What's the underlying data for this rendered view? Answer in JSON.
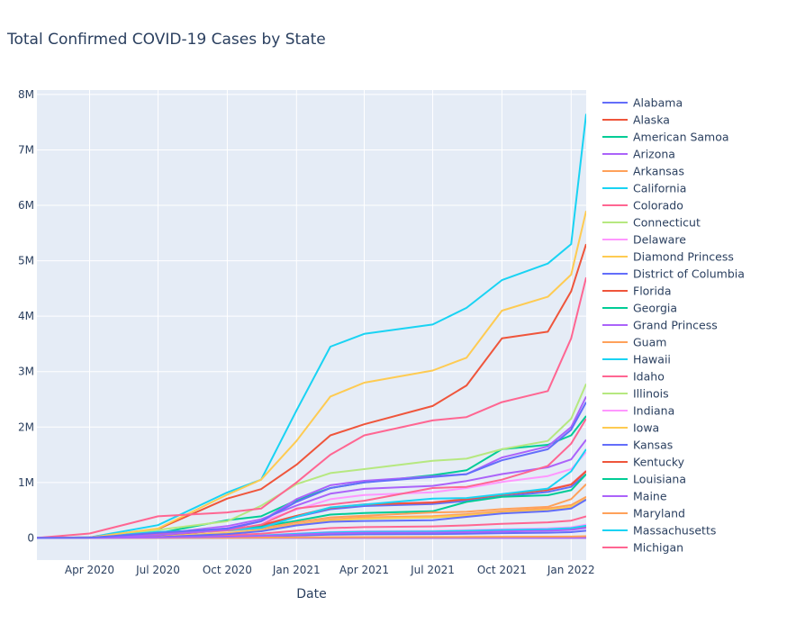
{
  "chart_data": {
    "type": "line",
    "title": "Total Confirmed COVID-19 Cases by State",
    "xlabel": "Date",
    "ylabel": "",
    "xlim": [
      "2020-01-22",
      "2022-01-21"
    ],
    "ylim": [
      -400000,
      8080000
    ],
    "grid": true,
    "legend_placement": "right",
    "xticks": [
      {
        "date": "2020-04-01",
        "label": "Apr 2020"
      },
      {
        "date": "2020-07-01",
        "label": "Jul 2020"
      },
      {
        "date": "2020-10-01",
        "label": "Oct 2020"
      },
      {
        "date": "2021-01-01",
        "label": "Jan 2021"
      },
      {
        "date": "2021-04-01",
        "label": "Apr 2021"
      },
      {
        "date": "2021-07-01",
        "label": "Jul 2021"
      },
      {
        "date": "2021-10-01",
        "label": "Oct 2021"
      },
      {
        "date": "2022-01-01",
        "label": "Jan 2022"
      }
    ],
    "yticks": [
      {
        "value": 0,
        "label": "0"
      },
      {
        "value": 1000000,
        "label": "1M"
      },
      {
        "value": 2000000,
        "label": "2M"
      },
      {
        "value": 3000000,
        "label": "3M"
      },
      {
        "value": 4000000,
        "label": "4M"
      },
      {
        "value": 5000000,
        "label": "5M"
      },
      {
        "value": 6000000,
        "label": "6M"
      },
      {
        "value": 7000000,
        "label": "7M"
      },
      {
        "value": 8000000,
        "label": "8M"
      }
    ],
    "x": [
      "2020-01-22",
      "2020-04-01",
      "2020-07-01",
      "2020-10-01",
      "2020-11-15",
      "2021-01-01",
      "2021-02-15",
      "2021-04-01",
      "2021-07-01",
      "2021-08-15",
      "2021-10-01",
      "2021-12-01",
      "2022-01-01",
      "2022-01-21"
    ],
    "value_unit_millions": true,
    "series": [
      {
        "name": "Alabama",
        "color": "#636efa",
        "values": [
          0,
          0.003,
          0.046,
          0.138,
          0.219,
          0.38,
          0.518,
          0.575,
          0.61,
          0.667,
          0.748,
          0.828,
          0.92,
          1.15
        ]
      },
      {
        "name": "Alaska",
        "color": "#EF553B",
        "values": [
          0,
          0,
          0.008,
          0.025,
          0.04,
          0.069,
          0.095,
          0.105,
          0.111,
          0.122,
          0.137,
          0.151,
          0.168,
          0.21
        ]
      },
      {
        "name": "American Samoa",
        "color": "#00cc96",
        "values": [
          0,
          0,
          0,
          0,
          0,
          0,
          0,
          0,
          0,
          0,
          0,
          0,
          0,
          0
        ]
      },
      {
        "name": "Arizona",
        "color": "#ab63fa",
        "values": [
          0,
          0.005,
          0.071,
          0.212,
          0.336,
          0.584,
          0.797,
          0.885,
          0.938,
          1.027,
          1.151,
          1.274,
          1.416,
          1.77
        ]
      },
      {
        "name": "Arkansas",
        "color": "#FFA15A",
        "values": [
          0,
          0.002,
          0.03,
          0.089,
          0.141,
          0.244,
          0.333,
          0.37,
          0.392,
          0.429,
          0.481,
          0.533,
          0.592,
          0.74
        ]
      },
      {
        "name": "California",
        "color": "#19d3f3",
        "values": [
          0,
          0.01,
          0.23,
          0.82,
          1.05,
          2.3,
          3.45,
          3.68,
          3.85,
          4.15,
          4.65,
          4.95,
          5.3,
          7.65
        ]
      },
      {
        "name": "Colorado",
        "color": "#FF6692",
        "values": [
          0,
          0.004,
          0.048,
          0.145,
          0.23,
          0.399,
          0.545,
          0.605,
          0.641,
          0.702,
          0.787,
          0.871,
          0.968,
          1.21
        ]
      },
      {
        "name": "Connecticut",
        "color": "#B6E880",
        "values": [
          0,
          0.002,
          0.028,
          0.083,
          0.131,
          0.228,
          0.311,
          0.345,
          0.366,
          0.4,
          0.449,
          0.497,
          0.552,
          0.69
        ]
      },
      {
        "name": "Delaware",
        "color": "#FF97FF",
        "values": [
          0,
          0.001,
          0.01,
          0.029,
          0.046,
          0.079,
          0.108,
          0.12,
          0.127,
          0.139,
          0.156,
          0.173,
          0.192,
          0.24
        ]
      },
      {
        "name": "Diamond Princess",
        "color": "#FECB52",
        "values": [
          0,
          0,
          0,
          0,
          0,
          0,
          0,
          0,
          0,
          0,
          0,
          0,
          0,
          0
        ]
      },
      {
        "name": "District of Columbia",
        "color": "#636efa",
        "values": [
          0,
          0,
          0.005,
          0.016,
          0.025,
          0.043,
          0.059,
          0.065,
          0.069,
          0.075,
          0.085,
          0.094,
          0.104,
          0.13
        ]
      },
      {
        "name": "Florida",
        "color": "#EF553B",
        "values": [
          0,
          0.007,
          0.16,
          0.71,
          0.88,
          1.32,
          1.85,
          2.05,
          2.38,
          2.75,
          3.6,
          3.72,
          4.45,
          5.3
        ]
      },
      {
        "name": "Georgia",
        "color": "#00cc96",
        "values": [
          0,
          0.005,
          0.085,
          0.32,
          0.39,
          0.68,
          0.9,
          1.0,
          1.13,
          1.22,
          1.6,
          1.68,
          1.85,
          2.2
        ]
      },
      {
        "name": "Grand Princess",
        "color": "#ab63fa",
        "values": [
          0,
          0,
          0,
          0,
          0,
          0,
          0,
          0,
          0,
          0,
          0,
          0,
          0,
          0
        ]
      },
      {
        "name": "Guam",
        "color": "#FFA15A",
        "values": [
          0,
          0,
          0.001,
          0.004,
          0.006,
          0.01,
          0.014,
          0.015,
          0.016,
          0.017,
          0.02,
          0.022,
          0.024,
          0.03
        ]
      },
      {
        "name": "Hawaii",
        "color": "#19d3f3",
        "values": [
          0,
          0,
          0.009,
          0.026,
          0.042,
          0.073,
          0.099,
          0.11,
          0.117,
          0.128,
          0.143,
          0.158,
          0.176,
          0.22
        ]
      },
      {
        "name": "Idaho",
        "color": "#FF6692",
        "values": [
          0,
          0.001,
          0.016,
          0.047,
          0.074,
          0.129,
          0.176,
          0.195,
          0.207,
          0.226,
          0.254,
          0.281,
          0.312,
          0.39
        ]
      },
      {
        "name": "Illinois",
        "color": "#B6E880",
        "values": [
          0,
          0.006,
          0.145,
          0.3,
          0.58,
          0.97,
          1.17,
          1.24,
          1.39,
          1.43,
          1.6,
          1.75,
          2.15,
          2.78
        ]
      },
      {
        "name": "Indiana",
        "color": "#FF97FF",
        "values": [
          0,
          0.005,
          0.062,
          0.186,
          0.295,
          0.512,
          0.698,
          0.775,
          0.822,
          0.899,
          1.008,
          1.116,
          1.24,
          1.55
        ]
      },
      {
        "name": "Iowa",
        "color": "#FECB52",
        "values": [
          0,
          0.002,
          0.028,
          0.084,
          0.133,
          0.231,
          0.315,
          0.35,
          0.371,
          0.406,
          0.455,
          0.504,
          0.56,
          0.7
        ]
      },
      {
        "name": "Kansas",
        "color": "#636efa",
        "values": [
          0,
          0.001,
          0.015,
          0.07,
          0.12,
          0.225,
          0.29,
          0.305,
          0.32,
          0.38,
          0.44,
          0.48,
          0.53,
          0.69
        ]
      },
      {
        "name": "Kentucky",
        "color": "#EF553B",
        "values": [
          0,
          0.004,
          0.048,
          0.144,
          0.228,
          0.396,
          0.54,
          0.6,
          0.636,
          0.696,
          0.78,
          0.864,
          0.96,
          1.2
        ]
      },
      {
        "name": "Louisiana",
        "color": "#00cc96",
        "values": [
          0,
          0.01,
          0.06,
          0.17,
          0.2,
          0.31,
          0.42,
          0.45,
          0.48,
          0.65,
          0.74,
          0.77,
          0.86,
          1.15
        ]
      },
      {
        "name": "Maine",
        "color": "#ab63fa",
        "values": [
          0,
          0,
          0.007,
          0.022,
          0.034,
          0.059,
          0.081,
          0.09,
          0.095,
          0.104,
          0.117,
          0.13,
          0.144,
          0.18
        ]
      },
      {
        "name": "Maryland",
        "color": "#FFA15A",
        "values": [
          0,
          0.003,
          0.07,
          0.13,
          0.17,
          0.28,
          0.37,
          0.4,
          0.46,
          0.47,
          0.52,
          0.56,
          0.7,
          0.97
        ]
      },
      {
        "name": "Massachusetts",
        "color": "#19d3f3",
        "values": [
          0,
          0.008,
          0.11,
          0.14,
          0.18,
          0.38,
          0.55,
          0.6,
          0.71,
          0.72,
          0.79,
          0.89,
          1.2,
          1.6
        ]
      },
      {
        "name": "Michigan",
        "color": "#FF6692",
        "values": [
          0,
          0.01,
          0.07,
          0.14,
          0.24,
          0.53,
          0.6,
          0.67,
          0.9,
          0.92,
          1.05,
          1.3,
          1.7,
          2.15
        ]
      },
      {
        "color": "#FECB52",
        "values": [
          0,
          0.004,
          0.17,
          0.78,
          1.05,
          1.75,
          2.55,
          2.8,
          3.02,
          3.25,
          4.1,
          4.35,
          4.75,
          5.9
        ]
      },
      {
        "color": "#FF6692",
        "values": [
          0,
          0.08,
          0.39,
          0.46,
          0.53,
          1.0,
          1.5,
          1.85,
          2.12,
          2.18,
          2.45,
          2.65,
          3.6,
          4.7
        ]
      },
      {
        "color": "#ab63fa",
        "values": [
          0,
          0.002,
          0.05,
          0.15,
          0.3,
          0.7,
          0.95,
          1.03,
          1.11,
          1.15,
          1.45,
          1.65,
          2.0,
          2.55
        ]
      },
      {
        "color": "#636efa",
        "values": [
          0,
          0.005,
          0.09,
          0.17,
          0.3,
          0.65,
          0.9,
          1.0,
          1.1,
          1.15,
          1.4,
          1.6,
          1.95,
          2.45
        ]
      }
    ]
  }
}
